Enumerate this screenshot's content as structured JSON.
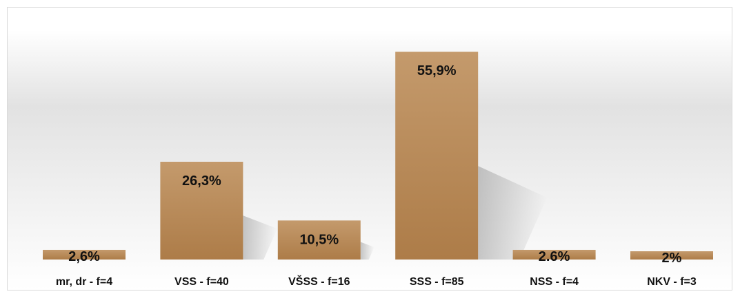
{
  "chart_data": {
    "type": "bar",
    "categories": [
      "mr, dr - f=4",
      "VSS - f=40",
      "VŠSS - f=16",
      "SSS - f=85",
      "NSS - f=4",
      "NKV - f=3"
    ],
    "values": [
      2.6,
      26.3,
      10.5,
      55.9,
      2.6,
      2
    ],
    "data_labels": [
      "2,6%",
      "26,3%",
      "10,5%",
      "55,9%",
      "2.6%",
      "2%"
    ],
    "ylim": [
      0,
      60
    ],
    "grid": false,
    "legend": "none",
    "colors": {
      "bar_top": "#c49a6c",
      "bar_bottom": "#ad7c48",
      "shadow": "#9a9a9a"
    }
  }
}
